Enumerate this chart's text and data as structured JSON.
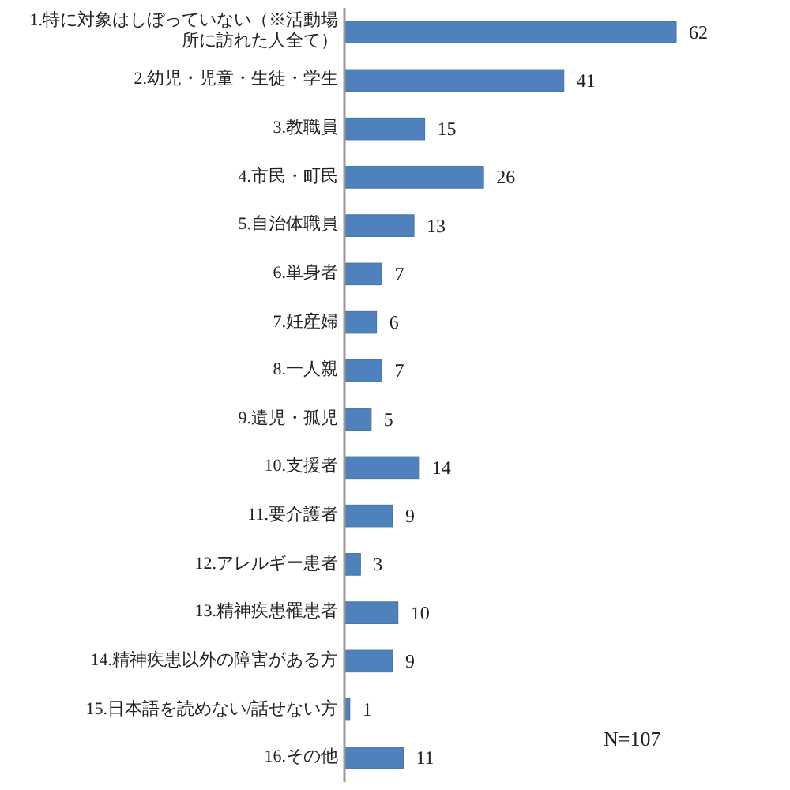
{
  "chart_data": {
    "type": "bar",
    "orientation": "horizontal",
    "data_labels": true,
    "color": "#4f81bd",
    "categories": [
      "1.特に対象はしぼっていない（※活動場所に訪れた人全て）",
      "2.幼児・児童・生徒・学生",
      "3.教職員",
      "4.市民・町民",
      "5.自治体職員",
      "6.単身者",
      "7.妊産婦",
      "8.一人親",
      "9.遺児・孤児",
      "10.支援者",
      "11.要介護者",
      "12.アレルギー患者",
      "13.精神疾患罹患者",
      "14.精神疾患以外の障害がある方",
      "15.日本語を読めない/話せない方",
      "16.その他"
    ],
    "values": [
      62,
      41,
      15,
      26,
      13,
      7,
      6,
      7,
      5,
      14,
      9,
      3,
      10,
      9,
      1,
      11
    ],
    "annotations": [
      "N=107"
    ]
  }
}
